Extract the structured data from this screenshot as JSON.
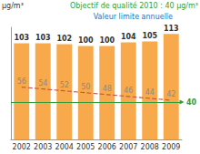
{
  "chart_data": {
    "type": "bar",
    "unit": "µg/m³",
    "categories": [
      "2002",
      "2003",
      "2004",
      "2005",
      "2006",
      "2007",
      "2008",
      "2009"
    ],
    "series": [
      {
        "type": "bar",
        "color": "#f7a94b",
        "values": [
          103,
          103,
          102,
          100,
          100,
          104,
          105,
          113
        ],
        "data_labels": true
      },
      {
        "type": "line",
        "name": "Valeur limite annuelle",
        "color": "#c9544f",
        "line_style": "dashed",
        "values": [
          56,
          54,
          52,
          50,
          48,
          46,
          44,
          42
        ],
        "data_labels": true
      }
    ],
    "hline": {
      "value": 40,
      "label": "40",
      "text": "Objectif de qualité 2010 : 40 µg/m³",
      "color": "#2f9e3a"
    },
    "ylim": [
      0,
      120
    ],
    "yticks": [],
    "grid": false,
    "tick_labels": "x"
  }
}
